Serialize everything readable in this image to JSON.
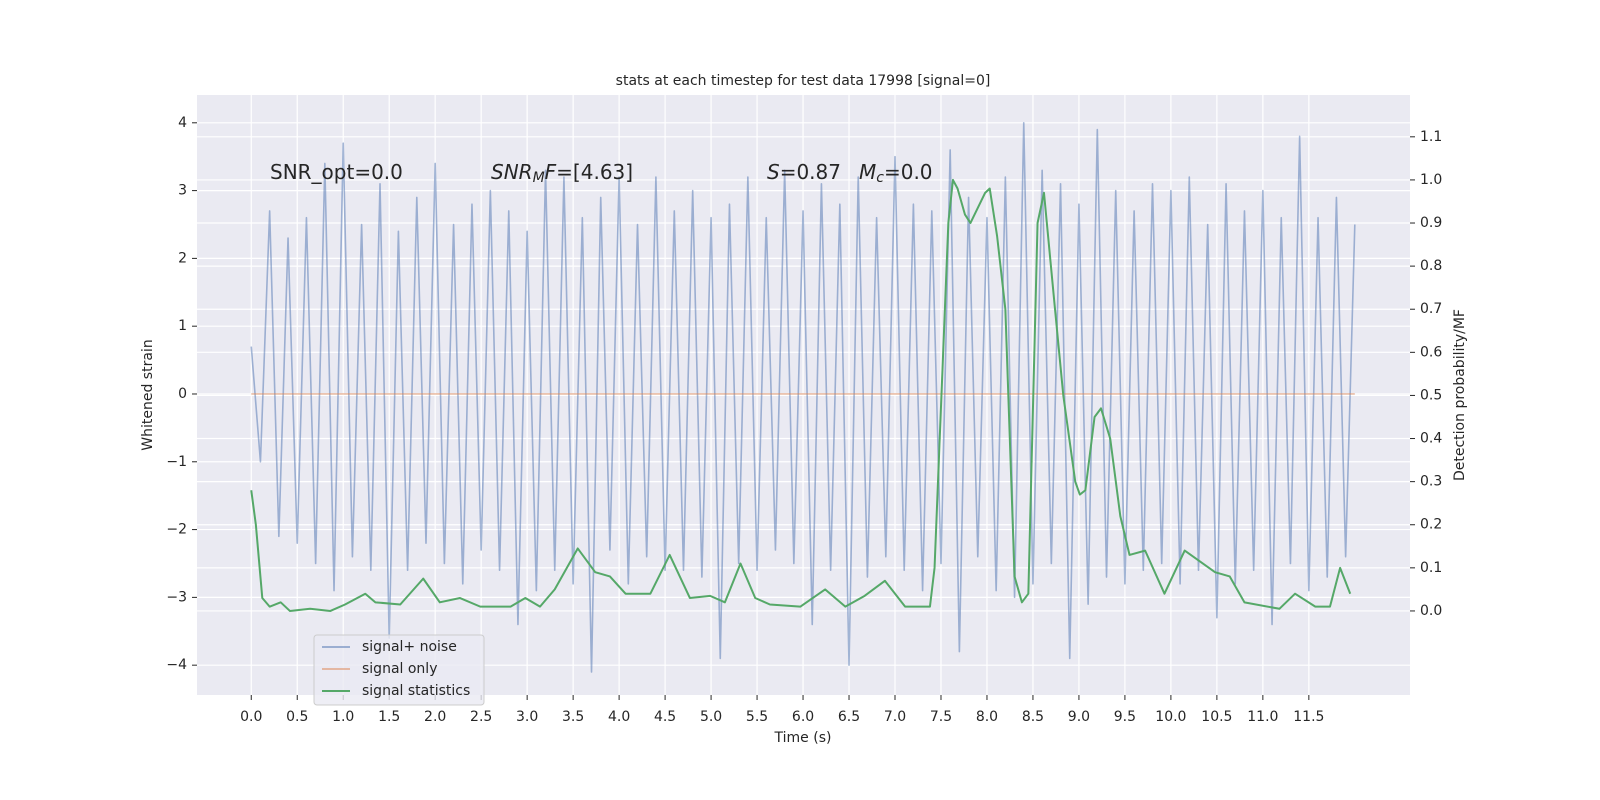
{
  "chart_data": {
    "type": "line",
    "title": "stats at each timestep for test data 17998 [signal=0]",
    "x_label": "Time (s)",
    "y_label": "Whitened strain",
    "y2_label": "Detection probability/MF",
    "xlim": [
      -0.59,
      12.6
    ],
    "ylim": [
      -4.44,
      4.41
    ],
    "y2lim": [
      -0.195,
      1.197
    ],
    "grid": true,
    "legend": "lower left",
    "xticks": [
      {
        "value": 0,
        "label": "0.0"
      },
      0.5,
      {
        "value": 1,
        "label": "1.0"
      },
      1.5,
      {
        "value": 2,
        "label": "2.0"
      },
      2.5,
      {
        "value": 3,
        "label": "3.0"
      },
      3.5,
      {
        "value": 4,
        "label": "4.0"
      },
      4.5,
      {
        "value": 5,
        "label": "5.0"
      },
      5.5,
      {
        "value": 6,
        "label": "6.0"
      },
      6.5,
      {
        "value": 7,
        "label": "7.0"
      },
      7.5,
      {
        "value": 8,
        "label": "8.0"
      },
      8.5,
      {
        "value": 9,
        "label": "9.0"
      },
      9.5,
      {
        "value": 10,
        "label": "10.0"
      },
      10.5,
      {
        "value": 11,
        "label": "11.0"
      },
      11.5
    ],
    "yticks": [
      {
        "value": -4,
        "label": "−4"
      },
      {
        "value": -3,
        "label": "−3"
      },
      {
        "value": -2,
        "label": "−2"
      },
      {
        "value": -1,
        "label": "−1"
      },
      0,
      1,
      2,
      3,
      4
    ],
    "y2ticks": [
      {
        "value": 0,
        "label": "0.0"
      },
      0.1,
      0.2,
      0.3,
      0.4,
      0.5,
      0.6,
      0.7,
      0.8,
      0.9,
      {
        "value": 1,
        "label": "1.0"
      },
      1.1
    ],
    "annotations": [
      [
        {
          "text": "SNR_opt=0.0",
          "style": "normal"
        }
      ],
      [
        {
          "text": "SNR",
          "style": "italic"
        },
        {
          "text": "M",
          "style": "sub"
        },
        {
          "text": "F",
          "style": "italic"
        },
        {
          "text": "=[4.63]",
          "style": "normal"
        }
      ],
      [
        {
          "text": "S",
          "style": "italic"
        },
        {
          "text": "=0.87",
          "style": "normal"
        }
      ],
      [
        {
          "text": "M",
          "style": "italic"
        },
        {
          "text": "c",
          "style": "sub"
        },
        {
          "text": "=0.0",
          "style": "normal"
        }
      ]
    ],
    "series": [
      {
        "name": "signal+ noise",
        "color": "#4c72b0",
        "opacity": 0.5,
        "x": [
          0,
          0.1,
          0.2,
          0.3,
          0.4,
          0.5,
          0.6,
          0.7,
          0.8,
          0.9,
          1,
          1.1,
          1.2,
          1.3,
          1.4,
          1.5,
          1.6,
          1.7,
          1.8,
          1.9,
          2,
          2.1,
          2.2,
          2.3,
          2.4,
          2.5,
          2.6,
          2.7,
          2.8,
          2.9,
          3,
          3.1,
          3.2,
          3.3,
          3.4,
          3.5,
          3.6,
          3.7,
          3.8,
          3.9,
          4,
          4.1,
          4.2,
          4.3,
          4.4,
          4.5,
          4.6,
          4.7,
          4.8,
          4.9,
          5,
          5.1,
          5.2,
          5.3,
          5.4,
          5.5,
          5.6,
          5.7,
          5.8,
          5.9,
          6,
          6.1,
          6.2,
          6.3,
          6.4,
          6.5,
          6.6,
          6.7,
          6.8,
          6.9,
          7,
          7.1,
          7.2,
          7.3,
          7.4,
          7.5,
          7.6,
          7.7,
          7.8,
          7.9,
          8,
          8.1,
          8.2,
          8.3,
          8.4,
          8.5,
          8.6,
          8.7,
          8.8,
          8.9,
          9,
          9.1,
          9.2,
          9.3,
          9.4,
          9.5,
          9.6,
          9.7,
          9.8,
          9.9,
          10,
          10.1,
          10.2,
          10.3,
          10.4,
          10.5,
          10.6,
          10.7,
          10.8,
          10.9,
          11,
          11.1,
          11.2,
          11.3,
          11.4,
          11.5,
          11.6,
          11.7,
          11.8,
          11.9,
          12
        ],
        "values": [
          0.7,
          -1.0,
          2.7,
          -2.1,
          2.3,
          -2.2,
          2.6,
          -2.5,
          3.4,
          -2.9,
          3.7,
          -2.4,
          2.5,
          -2.6,
          3.1,
          -3.6,
          2.4,
          -2.6,
          2.9,
          -2.2,
          3.4,
          -2.5,
          2.5,
          -2.8,
          2.8,
          -2.3,
          3.0,
          -2.6,
          2.7,
          -3.4,
          2.4,
          -2.9,
          3.3,
          -2.6,
          3.2,
          -2.8,
          2.6,
          -4.1,
          2.9,
          -2.3,
          3.2,
          -2.8,
          2.5,
          -2.4,
          3.2,
          -2.6,
          2.7,
          -2.6,
          3.0,
          -2.7,
          2.6,
          -3.9,
          2.8,
          -2.5,
          3.2,
          -2.6,
          2.6,
          -2.3,
          3.3,
          -2.5,
          2.7,
          -3.4,
          3.1,
          -2.6,
          2.8,
          -4.0,
          3.2,
          -2.7,
          2.6,
          -2.4,
          3.5,
          -2.6,
          2.8,
          -2.9,
          2.7,
          -2.5,
          3.6,
          -3.8,
          2.9,
          -2.4,
          2.6,
          -2.9,
          3.2,
          -3.0,
          4.0,
          -2.8,
          3.3,
          -2.5,
          3.1,
          -3.9,
          2.8,
          -3.1,
          3.9,
          -2.7,
          3.0,
          -2.8,
          2.7,
          -2.6,
          3.1,
          -2.5,
          3.0,
          -2.8,
          3.2,
          -2.6,
          2.5,
          -3.3,
          3.1,
          -2.8,
          2.7,
          -2.6,
          3.0,
          -3.4,
          2.6,
          -2.5,
          3.8,
          -2.9,
          2.6,
          -2.7,
          2.9,
          -2.4,
          2.5
        ]
      },
      {
        "name": "signal only",
        "color": "#dd8452",
        "opacity": 0.5,
        "x": [
          0,
          12
        ],
        "values": [
          0,
          0
        ]
      },
      {
        "name": "signal statistics",
        "color": "#55a868",
        "opacity": 1,
        "axis": "y2",
        "x": [
          0,
          0.05,
          0.12,
          0.2,
          0.32,
          0.42,
          0.64,
          0.86,
          1.02,
          1.24,
          1.35,
          1.62,
          1.87,
          2.05,
          2.27,
          2.49,
          2.82,
          2.98,
          3.14,
          3.3,
          3.55,
          3.74,
          3.9,
          4.07,
          4.34,
          4.55,
          4.77,
          4.99,
          5.15,
          5.32,
          5.48,
          5.64,
          5.97,
          6.24,
          6.46,
          6.67,
          6.89,
          7.11,
          7.38,
          7.43,
          7.58,
          7.63,
          7.68,
          7.76,
          7.82,
          7.98,
          8.03,
          8.11,
          8.2,
          8.3,
          8.38,
          8.45,
          8.55,
          8.62,
          8.74,
          8.83,
          8.96,
          9.01,
          9.07,
          9.17,
          9.24,
          9.34,
          9.45,
          9.55,
          9.72,
          9.93,
          10.15,
          10.48,
          10.64,
          10.8,
          11.18,
          11.35,
          11.57,
          11.73,
          11.84,
          11.95
        ],
        "values": [
          0.28,
          0.2,
          0.03,
          0.01,
          0.02,
          0,
          0.005,
          0,
          0.015,
          0.04,
          0.02,
          0.015,
          0.075,
          0.02,
          0.03,
          0.01,
          0.01,
          0.03,
          0.01,
          0.05,
          0.145,
          0.09,
          0.08,
          0.04,
          0.04,
          0.13,
          0.03,
          0.035,
          0.02,
          0.11,
          0.03,
          0.015,
          0.01,
          0.05,
          0.01,
          0.035,
          0.07,
          0.01,
          0.01,
          0.1,
          0.9,
          1,
          0.98,
          0.92,
          0.9,
          0.97,
          0.98,
          0.87,
          0.7,
          0.08,
          0.02,
          0.04,
          0.9,
          0.97,
          0.7,
          0.5,
          0.3,
          0.27,
          0.28,
          0.45,
          0.47,
          0.4,
          0.22,
          0.13,
          0.14,
          0.04,
          0.14,
          0.09,
          0.08,
          0.02,
          0.005,
          0.04,
          0.01,
          0.01,
          0.1,
          0.04
        ]
      }
    ]
  }
}
